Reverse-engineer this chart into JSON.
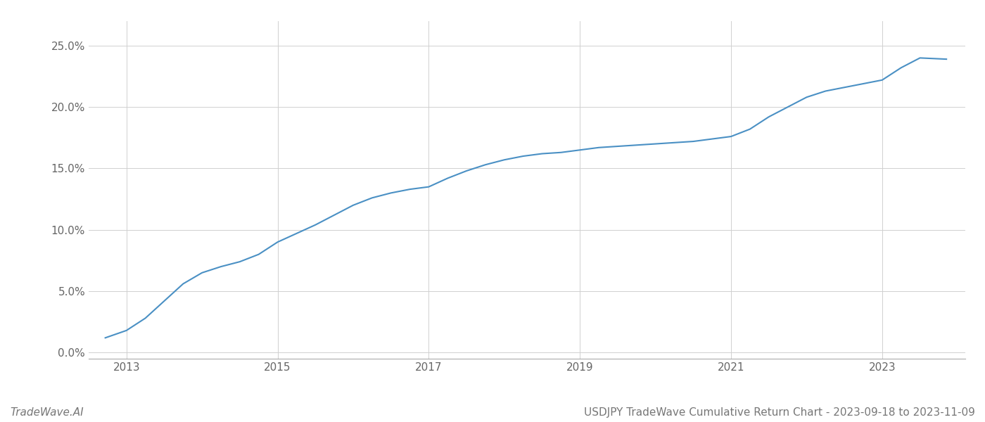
{
  "title": "USDJPY TradeWave Cumulative Return Chart - 2023-09-18 to 2023-11-09",
  "watermark": "TradeWave.AI",
  "line_color": "#4a90c4",
  "background_color": "#ffffff",
  "grid_color": "#d0d0d0",
  "x_years": [
    2012.72,
    2013.0,
    2013.25,
    2013.5,
    2013.75,
    2014.0,
    2014.25,
    2014.5,
    2014.75,
    2015.0,
    2015.25,
    2015.5,
    2015.75,
    2016.0,
    2016.25,
    2016.5,
    2016.75,
    2017.0,
    2017.25,
    2017.5,
    2017.75,
    2018.0,
    2018.25,
    2018.5,
    2018.75,
    2019.0,
    2019.25,
    2019.5,
    2019.75,
    2020.0,
    2020.25,
    2020.5,
    2020.75,
    2021.0,
    2021.25,
    2021.5,
    2021.75,
    2022.0,
    2022.25,
    2022.5,
    2022.75,
    2023.0,
    2023.25,
    2023.5,
    2023.85
  ],
  "y_values": [
    0.012,
    0.018,
    0.028,
    0.042,
    0.056,
    0.065,
    0.07,
    0.074,
    0.08,
    0.09,
    0.097,
    0.104,
    0.112,
    0.12,
    0.126,
    0.13,
    0.133,
    0.135,
    0.142,
    0.148,
    0.153,
    0.157,
    0.16,
    0.162,
    0.163,
    0.165,
    0.167,
    0.168,
    0.169,
    0.17,
    0.171,
    0.172,
    0.174,
    0.176,
    0.182,
    0.192,
    0.2,
    0.208,
    0.213,
    0.216,
    0.219,
    0.222,
    0.232,
    0.24,
    0.239
  ],
  "xlim": [
    2012.5,
    2024.1
  ],
  "ylim": [
    -0.005,
    0.27
  ],
  "xticks": [
    2013,
    2015,
    2017,
    2019,
    2021,
    2023
  ],
  "yticks": [
    0.0,
    0.05,
    0.1,
    0.15,
    0.2,
    0.25
  ],
  "ytick_labels": [
    "0.0%",
    "5.0%",
    "10.0%",
    "15.0%",
    "20.0%",
    "25.0%"
  ],
  "line_width": 1.5,
  "title_fontsize": 11,
  "tick_fontsize": 11,
  "watermark_fontsize": 11
}
